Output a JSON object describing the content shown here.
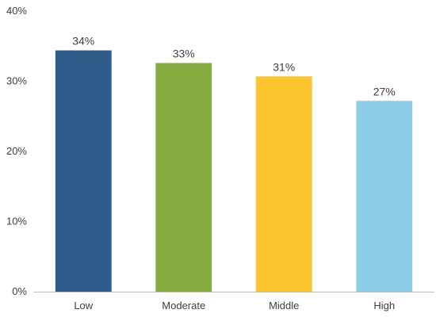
{
  "chart_data": {
    "type": "bar",
    "title": "",
    "xlabel": "",
    "ylabel": "",
    "categories": [
      "Low",
      "Moderate",
      "Middle",
      "High"
    ],
    "values": [
      34.4,
      32.6,
      30.7,
      27.2
    ],
    "data_labels": [
      "34%",
      "33%",
      "31%",
      "27%"
    ],
    "colors": [
      "#2e5c8a",
      "#86ab3e",
      "#fcc42d",
      "#8ccde8"
    ],
    "ylim": [
      0,
      40
    ],
    "y_ticks": [
      0,
      10,
      20,
      30,
      40
    ],
    "y_tick_labels": [
      "0%",
      "10%",
      "20%",
      "30%",
      "40%"
    ],
    "axis_color": "#bfbfbf",
    "grid": false,
    "legend": "none"
  }
}
